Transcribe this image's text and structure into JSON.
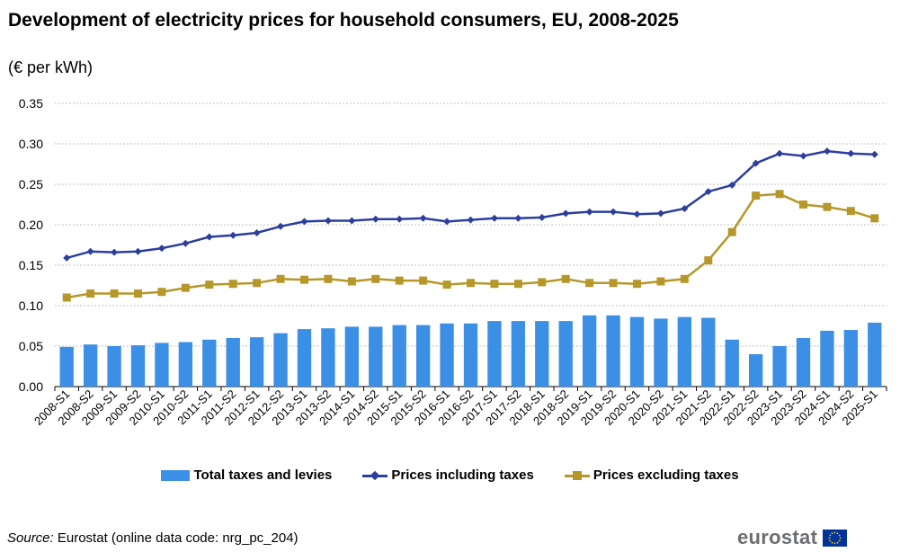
{
  "header": {
    "title": "Development of electricity prices for household consumers, EU, 2008-2025",
    "subtitle": "(€ per kWh)"
  },
  "footer": {
    "source_label": "Source:",
    "source_text": " Eurostat (online data code: nrg_pc_204)",
    "logo_text": "eurostat"
  },
  "colors": {
    "taxes_bar": "#3b8fe4",
    "including_line": "#2b3f9e",
    "excluding_line": "#b5972a",
    "gridline": "#bfbfbf",
    "eu_flag_blue": "#003399",
    "eu_flag_stars": "#ffcc00"
  },
  "chart_data": {
    "type": "bar",
    "title": "Development of electricity prices for household consumers, EU, 2008-2025",
    "subtitle": "(€ per kWh)",
    "xlabel": "",
    "ylabel": "",
    "ylim": [
      0,
      0.35
    ],
    "yticks": [
      "0.00",
      "0.05",
      "0.10",
      "0.15",
      "0.20",
      "0.25",
      "0.30",
      "0.35"
    ],
    "grid": true,
    "legend_position": "bottom",
    "categories": [
      "2008-S1",
      "2008-S2",
      "2009-S1",
      "2009-S2",
      "2010-S1",
      "2010-S2",
      "2011-S1",
      "2011-S2",
      "2012-S1",
      "2012-S2",
      "2013-S1",
      "2013-S2",
      "2014-S1",
      "2014-S2",
      "2015-S1",
      "2015-S2",
      "2016-S1",
      "2016-S2",
      "2017-S1",
      "2017-S2",
      "2018-S1",
      "2018-S2",
      "2019-S1",
      "2019-S2",
      "2020-S1",
      "2020-S2",
      "2021-S1",
      "2021-S2",
      "2022-S1",
      "2022-S2",
      "2023-S1",
      "2023-S2",
      "2024-S1",
      "2024-S2",
      "2025-S1"
    ],
    "series": [
      {
        "name": "Total taxes and levies",
        "type": "bar",
        "values": [
          0.049,
          0.052,
          0.05,
          0.051,
          0.054,
          0.055,
          0.058,
          0.06,
          0.061,
          0.066,
          0.071,
          0.072,
          0.074,
          0.074,
          0.076,
          0.076,
          0.078,
          0.078,
          0.081,
          0.081,
          0.081,
          0.081,
          0.088,
          0.088,
          0.086,
          0.084,
          0.086,
          0.085,
          0.058,
          0.04,
          0.05,
          0.06,
          0.069,
          0.07,
          0.079
        ]
      },
      {
        "name": "Prices including taxes",
        "type": "line",
        "marker": "diamond",
        "values": [
          0.159,
          0.167,
          0.166,
          0.167,
          0.171,
          0.177,
          0.185,
          0.187,
          0.19,
          0.198,
          0.204,
          0.205,
          0.205,
          0.207,
          0.207,
          0.208,
          0.204,
          0.206,
          0.208,
          0.208,
          0.209,
          0.214,
          0.216,
          0.216,
          0.213,
          0.214,
          0.22,
          0.241,
          0.249,
          0.276,
          0.288,
          0.285,
          0.291,
          0.288,
          0.287
        ]
      },
      {
        "name": "Prices excluding taxes",
        "type": "line",
        "marker": "square",
        "values": [
          0.11,
          0.115,
          0.115,
          0.115,
          0.117,
          0.122,
          0.126,
          0.127,
          0.128,
          0.133,
          0.132,
          0.133,
          0.13,
          0.133,
          0.131,
          0.131,
          0.126,
          0.128,
          0.127,
          0.127,
          0.129,
          0.133,
          0.128,
          0.128,
          0.127,
          0.13,
          0.133,
          0.156,
          0.191,
          0.236,
          0.238,
          0.225,
          0.222,
          0.217,
          0.208
        ]
      }
    ]
  }
}
